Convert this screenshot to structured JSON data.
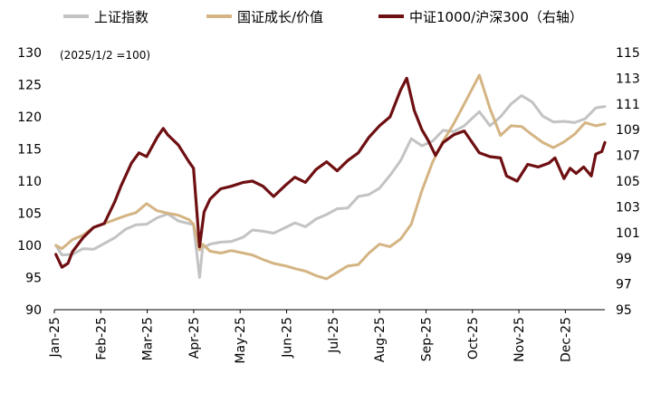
{
  "chart_data": {
    "type": "line",
    "note": "(2025/1/2 =100)",
    "x_ticks": [
      "Jan-25",
      "Feb-25",
      "Mar-25",
      "Apr-25",
      "May-25",
      "Jun-25",
      "Jul-25",
      "Aug-25",
      "Sep-25",
      "Oct-25",
      "Nov-25",
      "Dec-25"
    ],
    "y_left": {
      "min": 90,
      "max": 130,
      "step": 5
    },
    "y_right": {
      "min": 95,
      "max": 115,
      "step": 2
    },
    "legend_position": "top",
    "grid": false,
    "series": [
      {
        "name": "上证指数",
        "axis": "left",
        "color": "#c3c3c3",
        "points": [
          [
            "2025-01-02",
            100
          ],
          [
            "2025-01-06",
            98.5
          ],
          [
            "2025-01-13",
            98.6
          ],
          [
            "2025-01-20",
            99.5
          ],
          [
            "2025-01-27",
            99.4
          ],
          [
            "2025-02-03",
            100.3
          ],
          [
            "2025-02-10",
            101.2
          ],
          [
            "2025-02-17",
            102.5
          ],
          [
            "2025-02-24",
            103.2
          ],
          [
            "2025-03-03",
            103.3
          ],
          [
            "2025-03-10",
            104.3
          ],
          [
            "2025-03-17",
            104.9
          ],
          [
            "2025-03-24",
            103.8
          ],
          [
            "2025-03-31",
            103.4
          ],
          [
            "2025-04-03",
            103.2
          ],
          [
            "2025-04-07",
            95.0
          ],
          [
            "2025-04-09",
            99.6
          ],
          [
            "2025-04-14",
            100.2
          ],
          [
            "2025-04-21",
            100.5
          ],
          [
            "2025-04-28",
            100.6
          ],
          [
            "2025-05-06",
            101.3
          ],
          [
            "2025-05-12",
            102.4
          ],
          [
            "2025-05-19",
            102.2
          ],
          [
            "2025-05-26",
            101.9
          ],
          [
            "2025-06-03",
            102.8
          ],
          [
            "2025-06-09",
            103.5
          ],
          [
            "2025-06-16",
            102.9
          ],
          [
            "2025-06-23",
            104.1
          ],
          [
            "2025-06-30",
            104.8
          ],
          [
            "2025-07-07",
            105.7
          ],
          [
            "2025-07-14",
            105.8
          ],
          [
            "2025-07-21",
            107.6
          ],
          [
            "2025-07-28",
            107.9
          ],
          [
            "2025-08-04",
            108.9
          ],
          [
            "2025-08-11",
            110.9
          ],
          [
            "2025-08-18",
            113.2
          ],
          [
            "2025-08-25",
            116.6
          ],
          [
            "2025-09-01",
            115.5
          ],
          [
            "2025-09-08",
            116.2
          ],
          [
            "2025-09-15",
            117.9
          ],
          [
            "2025-09-22",
            117.7
          ],
          [
            "2025-09-29",
            118.6
          ],
          [
            "2025-10-09",
            120.8
          ],
          [
            "2025-10-16",
            118.6
          ],
          [
            "2025-10-23",
            120.0
          ],
          [
            "2025-10-30",
            122.0
          ],
          [
            "2025-11-06",
            123.3
          ],
          [
            "2025-11-13",
            122.3
          ],
          [
            "2025-11-20",
            120.1
          ],
          [
            "2025-11-27",
            119.2
          ],
          [
            "2025-12-04",
            119.3
          ],
          [
            "2025-12-11",
            119.1
          ],
          [
            "2025-12-18",
            119.7
          ],
          [
            "2025-12-25",
            121.4
          ],
          [
            "2025-12-31",
            121.6
          ]
        ]
      },
      {
        "name": "国证成长/价值",
        "axis": "left",
        "color": "#d4b483",
        "points": [
          [
            "2025-01-02",
            100
          ],
          [
            "2025-01-06",
            99.5
          ],
          [
            "2025-01-13",
            100.9
          ],
          [
            "2025-01-20",
            101.6
          ],
          [
            "2025-01-27",
            102.8
          ],
          [
            "2025-02-03",
            103.4
          ],
          [
            "2025-02-10",
            104.0
          ],
          [
            "2025-02-17",
            104.6
          ],
          [
            "2025-02-24",
            105.1
          ],
          [
            "2025-03-03",
            106.5
          ],
          [
            "2025-03-10",
            105.4
          ],
          [
            "2025-03-17",
            105.0
          ],
          [
            "2025-03-24",
            104.7
          ],
          [
            "2025-03-31",
            104.0
          ],
          [
            "2025-04-03",
            103.3
          ],
          [
            "2025-04-07",
            99.3
          ],
          [
            "2025-04-09",
            100.2
          ],
          [
            "2025-04-14",
            99.1
          ],
          [
            "2025-04-21",
            98.8
          ],
          [
            "2025-04-28",
            99.2
          ],
          [
            "2025-05-06",
            98.8
          ],
          [
            "2025-05-12",
            98.5
          ],
          [
            "2025-05-19",
            97.8
          ],
          [
            "2025-05-26",
            97.2
          ],
          [
            "2025-06-03",
            96.8
          ],
          [
            "2025-06-09",
            96.4
          ],
          [
            "2025-06-16",
            96.0
          ],
          [
            "2025-06-23",
            95.3
          ],
          [
            "2025-06-30",
            94.8
          ],
          [
            "2025-07-07",
            95.8
          ],
          [
            "2025-07-14",
            96.8
          ],
          [
            "2025-07-21",
            97.0
          ],
          [
            "2025-07-28",
            98.8
          ],
          [
            "2025-08-04",
            100.2
          ],
          [
            "2025-08-11",
            99.8
          ],
          [
            "2025-08-18",
            101.0
          ],
          [
            "2025-08-25",
            103.3
          ],
          [
            "2025-09-01",
            108.5
          ],
          [
            "2025-09-08",
            112.9
          ],
          [
            "2025-09-15",
            116.2
          ],
          [
            "2025-09-22",
            118.9
          ],
          [
            "2025-09-29",
            122.0
          ],
          [
            "2025-10-09",
            126.5
          ],
          [
            "2025-10-16",
            121.3
          ],
          [
            "2025-10-23",
            117.1
          ],
          [
            "2025-10-30",
            118.6
          ],
          [
            "2025-11-06",
            118.5
          ],
          [
            "2025-11-13",
            117.2
          ],
          [
            "2025-11-20",
            116.0
          ],
          [
            "2025-11-27",
            115.2
          ],
          [
            "2025-12-04",
            116.1
          ],
          [
            "2025-12-11",
            117.3
          ],
          [
            "2025-12-18",
            119.1
          ],
          [
            "2025-12-25",
            118.6
          ],
          [
            "2025-12-31",
            118.9
          ]
        ]
      },
      {
        "name": "中证1000/沪深300（右轴）",
        "axis": "right",
        "color": "#6e0f12",
        "points": [
          [
            "2025-01-02",
            99.3
          ],
          [
            "2025-01-06",
            98.3
          ],
          [
            "2025-01-10",
            98.6
          ],
          [
            "2025-01-13",
            99.5
          ],
          [
            "2025-01-20",
            100.6
          ],
          [
            "2025-01-27",
            101.4
          ],
          [
            "2025-02-03",
            101.7
          ],
          [
            "2025-02-10",
            103.4
          ],
          [
            "2025-02-14",
            104.6
          ],
          [
            "2025-02-21",
            106.4
          ],
          [
            "2025-02-26",
            107.2
          ],
          [
            "2025-03-03",
            106.9
          ],
          [
            "2025-03-10",
            108.4
          ],
          [
            "2025-03-14",
            109.1
          ],
          [
            "2025-03-17",
            108.6
          ],
          [
            "2025-03-24",
            107.8
          ],
          [
            "2025-03-31",
            106.5
          ],
          [
            "2025-04-03",
            106.0
          ],
          [
            "2025-04-07",
            99.9
          ],
          [
            "2025-04-10",
            102.6
          ],
          [
            "2025-04-14",
            103.6
          ],
          [
            "2025-04-21",
            104.4
          ],
          [
            "2025-04-28",
            104.6
          ],
          [
            "2025-05-06",
            104.9
          ],
          [
            "2025-05-12",
            105.0
          ],
          [
            "2025-05-19",
            104.6
          ],
          [
            "2025-05-26",
            103.8
          ],
          [
            "2025-06-03",
            104.7
          ],
          [
            "2025-06-09",
            105.3
          ],
          [
            "2025-06-16",
            104.9
          ],
          [
            "2025-06-23",
            105.9
          ],
          [
            "2025-06-30",
            106.5
          ],
          [
            "2025-07-07",
            105.8
          ],
          [
            "2025-07-14",
            106.6
          ],
          [
            "2025-07-21",
            107.2
          ],
          [
            "2025-07-28",
            108.4
          ],
          [
            "2025-08-04",
            109.3
          ],
          [
            "2025-08-11",
            110.0
          ],
          [
            "2025-08-18",
            112.1
          ],
          [
            "2025-08-22",
            113.0
          ],
          [
            "2025-08-27",
            110.5
          ],
          [
            "2025-09-01",
            109.0
          ],
          [
            "2025-09-05",
            108.2
          ],
          [
            "2025-09-10",
            107.0
          ],
          [
            "2025-09-15",
            108.0
          ],
          [
            "2025-09-22",
            108.6
          ],
          [
            "2025-09-29",
            108.9
          ],
          [
            "2025-10-09",
            107.2
          ],
          [
            "2025-10-16",
            106.9
          ],
          [
            "2025-10-23",
            106.8
          ],
          [
            "2025-10-27",
            105.4
          ],
          [
            "2025-11-03",
            105.0
          ],
          [
            "2025-11-10",
            106.3
          ],
          [
            "2025-11-17",
            106.1
          ],
          [
            "2025-11-24",
            106.4
          ],
          [
            "2025-11-28",
            106.8
          ],
          [
            "2025-12-04",
            105.2
          ],
          [
            "2025-12-08",
            106.0
          ],
          [
            "2025-12-12",
            105.6
          ],
          [
            "2025-12-17",
            106.1
          ],
          [
            "2025-12-22",
            105.4
          ],
          [
            "2025-12-25",
            107.1
          ],
          [
            "2025-12-29",
            107.3
          ],
          [
            "2025-12-31",
            108.0
          ]
        ]
      }
    ]
  }
}
